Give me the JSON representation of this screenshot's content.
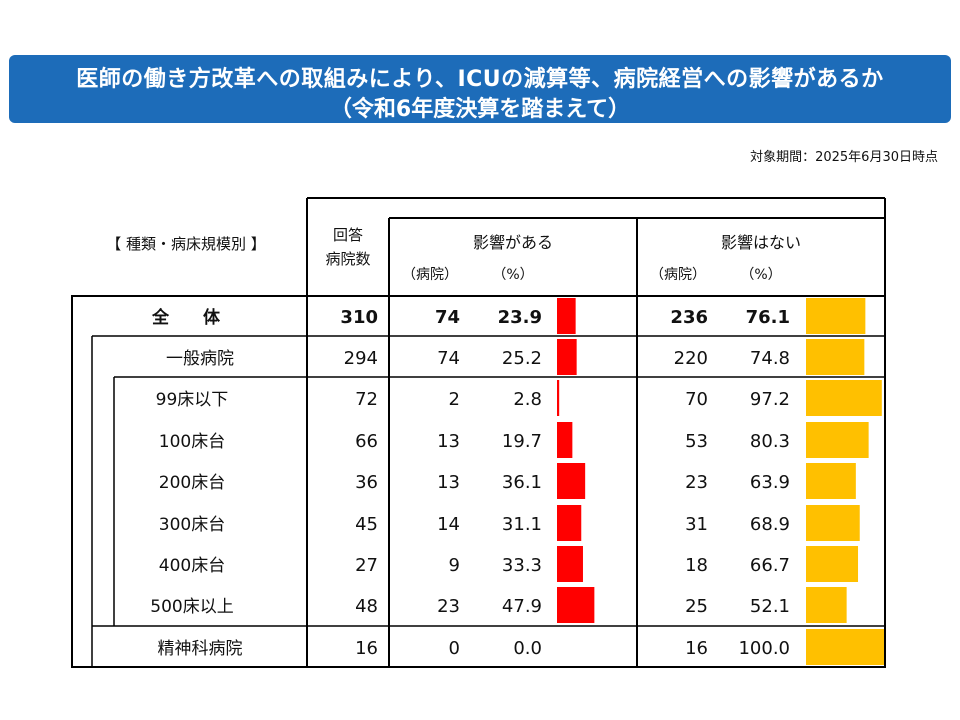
{
  "title": {
    "line1": "医師の働き方改革への取組みにより、ICUの減算等、病院経営への影響があるか",
    "line2": "（令和6年度決算を踏まえて）"
  },
  "period": "対象期間：2025年6月30日時点",
  "table": {
    "category_header": "【 種類・病床規模別 】",
    "count_header": [
      "回答",
      "病院数"
    ],
    "affected_header": "影響がある",
    "not_affected_header": "影響はない",
    "unit_hospitals": "（病院）",
    "unit_percent": "（%）"
  },
  "colors": {
    "affected": "#ff0000",
    "not_affected": "#ffc000",
    "title_bg": "#1d6cb9"
  },
  "chart_data": {
    "type": "table",
    "title": "医師の働き方改革への取組みにより、ICUの減算等、病院経営への影響があるか（令和6年度決算を踏まえて）",
    "columns": [
      "回答病院数",
      "影響がある（病院）",
      "影響がある（%）",
      "影響はない（病院）",
      "影響はない（%）"
    ],
    "rows": [
      {
        "label": "全　　体",
        "level": 0,
        "total": "310",
        "yes_n": "74",
        "yes_pct": "23.9",
        "no_n": "236",
        "no_pct": "76.1",
        "yes_val": 23.9,
        "no_val": 76.1
      },
      {
        "label": "一般病院",
        "level": 1,
        "total": "294",
        "yes_n": "74",
        "yes_pct": "25.2",
        "no_n": "220",
        "no_pct": "74.8",
        "yes_val": 25.2,
        "no_val": 74.8
      },
      {
        "label": "99床以下",
        "level": 2,
        "total": "72",
        "yes_n": "2",
        "yes_pct": "2.8",
        "no_n": "70",
        "no_pct": "97.2",
        "yes_val": 2.8,
        "no_val": 97.2
      },
      {
        "label": "100床台",
        "level": 2,
        "total": "66",
        "yes_n": "13",
        "yes_pct": "19.7",
        "no_n": "53",
        "no_pct": "80.3",
        "yes_val": 19.7,
        "no_val": 80.3
      },
      {
        "label": "200床台",
        "level": 2,
        "total": "36",
        "yes_n": "13",
        "yes_pct": "36.1",
        "no_n": "23",
        "no_pct": "63.9",
        "yes_val": 36.1,
        "no_val": 63.9
      },
      {
        "label": "300床台",
        "level": 2,
        "total": "45",
        "yes_n": "14",
        "yes_pct": "31.1",
        "no_n": "31",
        "no_pct": "68.9",
        "yes_val": 31.1,
        "no_val": 68.9
      },
      {
        "label": "400床台",
        "level": 2,
        "total": "27",
        "yes_n": "9",
        "yes_pct": "33.3",
        "no_n": "18",
        "no_pct": "66.7",
        "yes_val": 33.3,
        "no_val": 66.7
      },
      {
        "label": "500床以上",
        "level": 2,
        "total": "48",
        "yes_n": "23",
        "yes_pct": "47.9",
        "no_n": "25",
        "no_pct": "52.1",
        "yes_val": 47.9,
        "no_val": 52.1
      },
      {
        "label": "精神科病院",
        "level": 1,
        "total": "16",
        "yes_n": "0",
        "yes_pct": "0.0",
        "no_n": "16",
        "no_pct": "100.0",
        "yes_val": 0.0,
        "no_val": 100.0
      }
    ]
  }
}
